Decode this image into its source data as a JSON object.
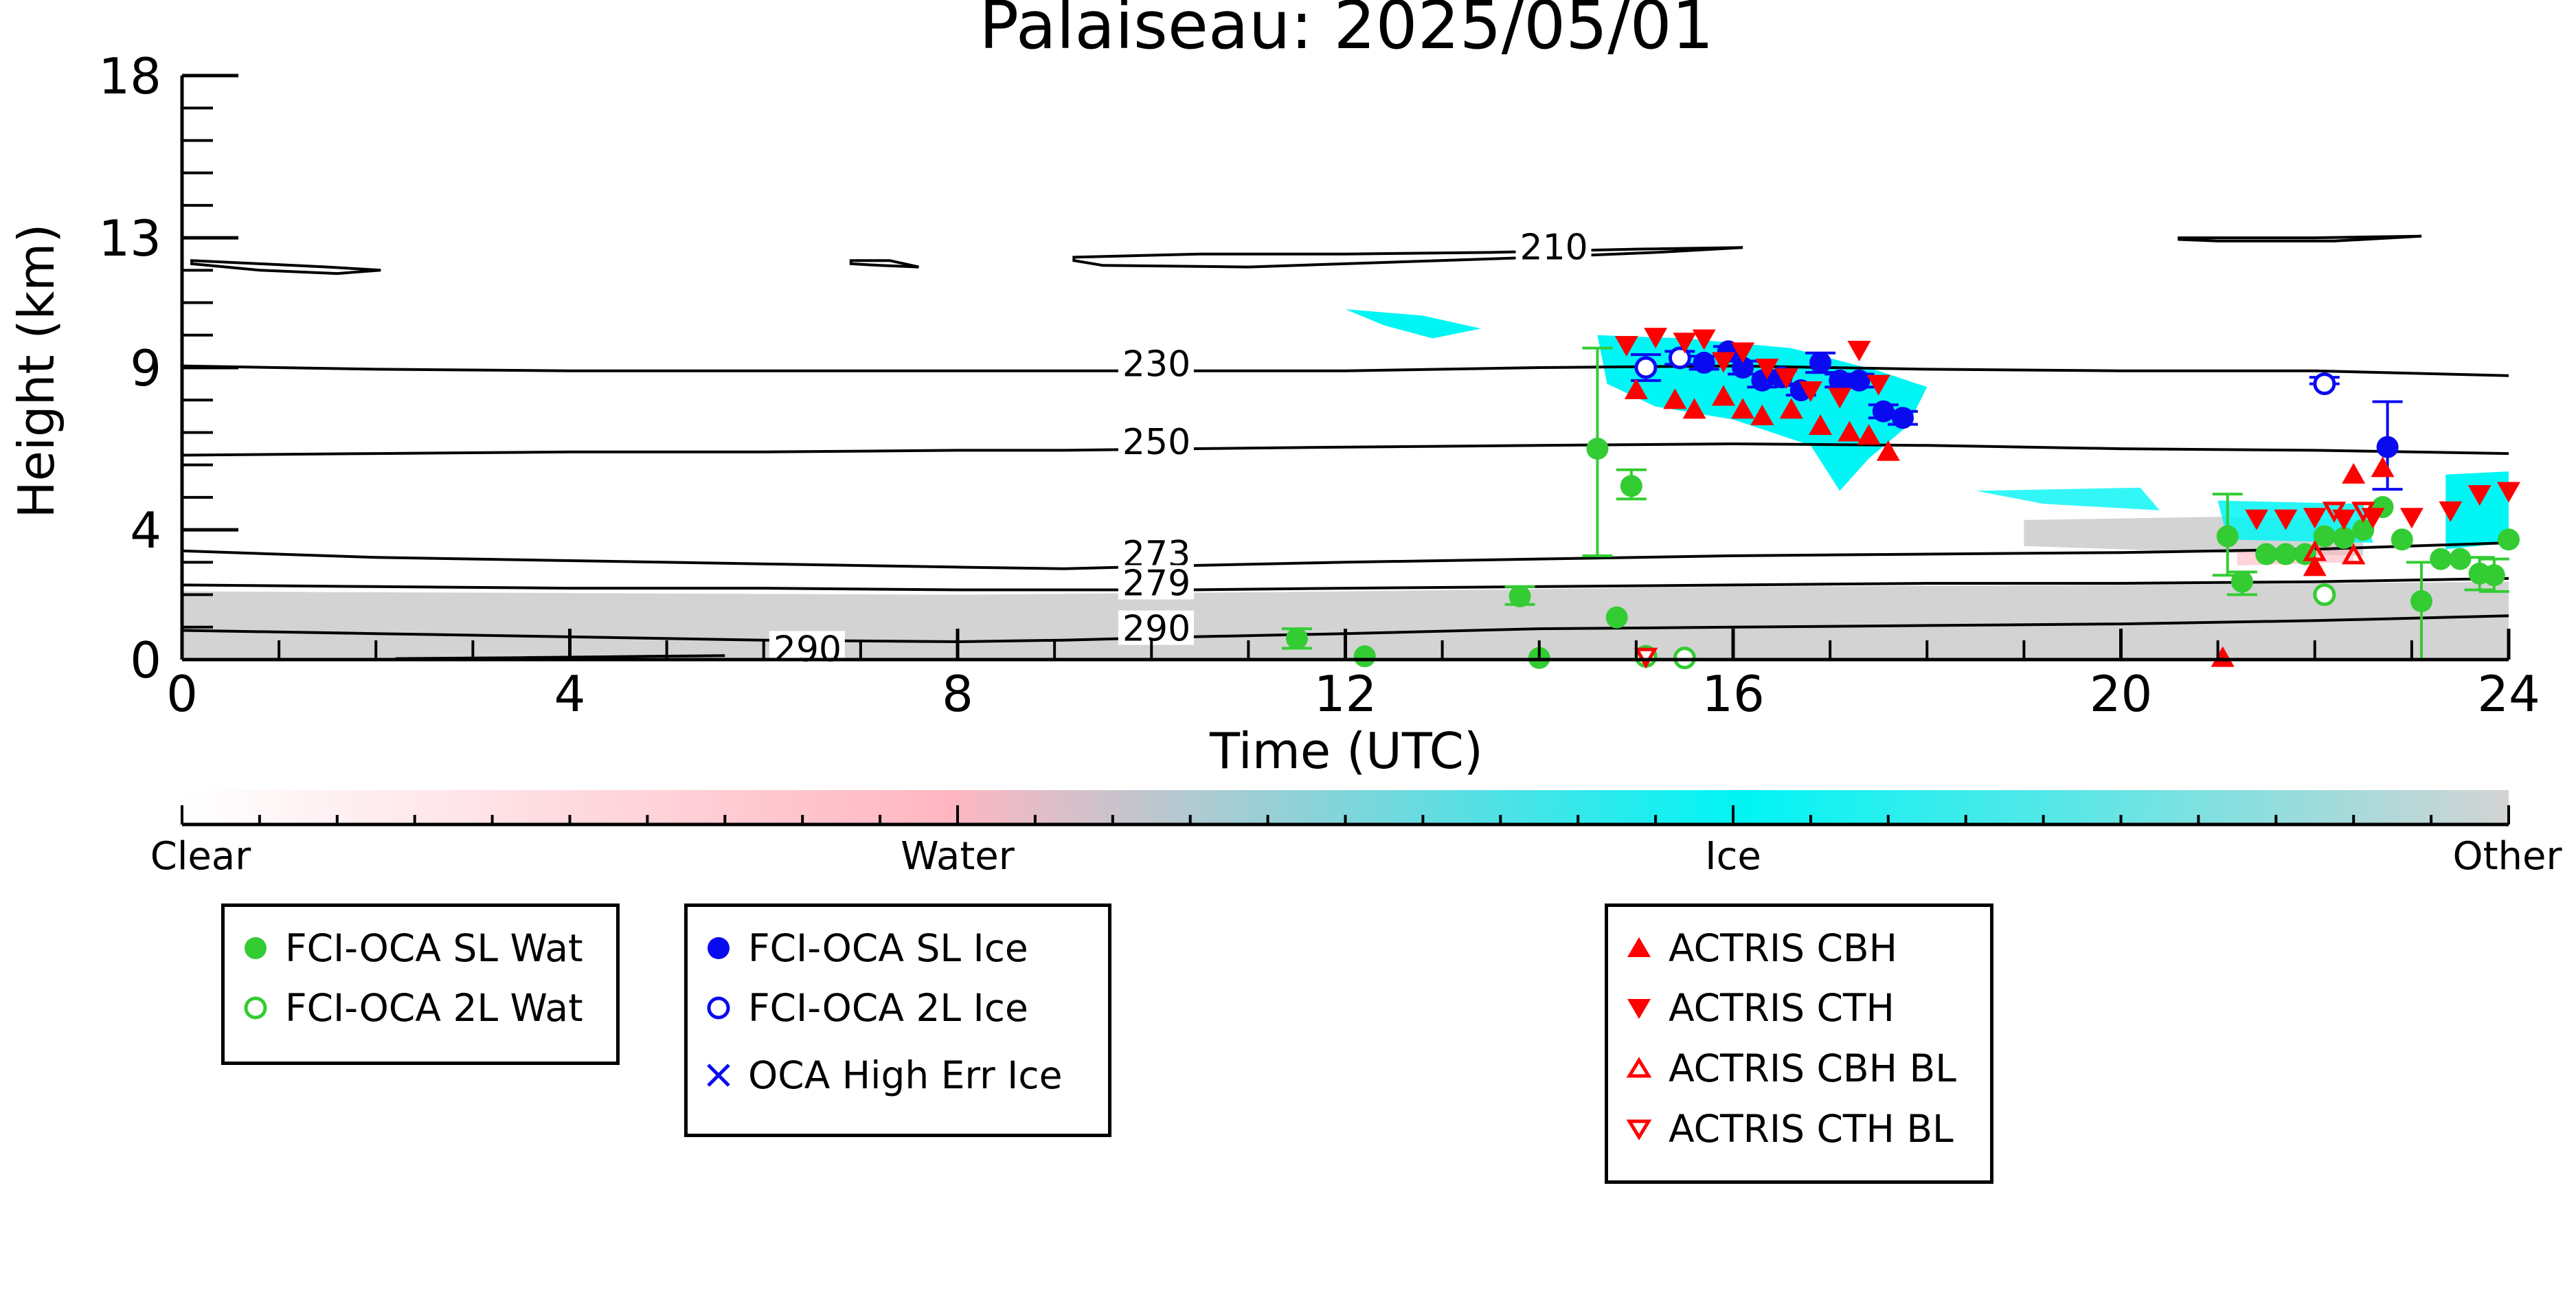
{
  "chart_data": {
    "type": "scatter",
    "title": "Palaiseau: 2025/05/01",
    "xlabel": "Time (UTC)",
    "ylabel": "Height (km)",
    "xlim": [
      0,
      24
    ],
    "ylim": [
      0,
      18
    ],
    "x_ticks": [
      0,
      4,
      8,
      12,
      16,
      20,
      24
    ],
    "x_tick_labels": [
      "0",
      "4",
      "8",
      "12",
      "16",
      "20",
      "24"
    ],
    "y_ticks": [
      0,
      4,
      9,
      13,
      18
    ],
    "y_tick_labels": [
      "0",
      "4",
      "9",
      "13",
      "18"
    ],
    "colorbar": {
      "labels": [
        "Clear",
        "Water",
        "Ice",
        "Other"
      ],
      "colors": [
        "#ffffff",
        "#ffb6c1",
        "#00f5f5",
        "#d3d3d3"
      ]
    },
    "temperature_contours": [
      {
        "label": "210",
        "label_x": 13.8,
        "label_y": 12.5,
        "shapes": [
          [
            [
              0.1,
              12.3
            ],
            [
              0.8,
              12.2
            ],
            [
              1.5,
              12.1
            ],
            [
              2.05,
              12.0
            ],
            [
              1.6,
              11.9
            ],
            [
              0.8,
              12.0
            ],
            [
              0.1,
              12.2
            ]
          ],
          [
            [
              6.9,
              12.3
            ],
            [
              7.3,
              12.3
            ],
            [
              7.6,
              12.1
            ],
            [
              7.2,
              12.15
            ],
            [
              6.9,
              12.2
            ]
          ],
          [
            [
              9.2,
              12.4
            ],
            [
              10.5,
              12.5
            ],
            [
              12,
              12.5
            ],
            [
              13.5,
              12.55
            ],
            [
              15,
              12.65
            ],
            [
              16.1,
              12.7
            ],
            [
              15.2,
              12.55
            ],
            [
              14,
              12.4
            ],
            [
              12.5,
              12.25
            ],
            [
              11,
              12.1
            ],
            [
              9.5,
              12.15
            ],
            [
              9.2,
              12.3
            ]
          ],
          [
            [
              20.6,
              13.0
            ],
            [
              22,
              13.0
            ],
            [
              23.1,
              13.05
            ],
            [
              22.2,
              12.9
            ],
            [
              21,
              12.9
            ],
            [
              20.6,
              12.95
            ]
          ]
        ]
      },
      {
        "label": "230",
        "label_x": 9.7,
        "label_y": 8.9,
        "line": [
          [
            0,
            9.05
          ],
          [
            2,
            8.95
          ],
          [
            4,
            8.9
          ],
          [
            6,
            8.9
          ],
          [
            8,
            8.9
          ],
          [
            9.1,
            8.9
          ],
          [
            10.4,
            8.9
          ],
          [
            12,
            8.9
          ],
          [
            14,
            9.0
          ],
          [
            16,
            9.05
          ],
          [
            18,
            8.95
          ],
          [
            20,
            8.9
          ],
          [
            22,
            8.9
          ],
          [
            24,
            8.75
          ]
        ]
      },
      {
        "label": "250",
        "label_x": 9.7,
        "label_y": 6.5,
        "line": [
          [
            0,
            6.3
          ],
          [
            2,
            6.35
          ],
          [
            4,
            6.4
          ],
          [
            6,
            6.4
          ],
          [
            8,
            6.45
          ],
          [
            9.1,
            6.45
          ],
          [
            10.4,
            6.5
          ],
          [
            12,
            6.55
          ],
          [
            14,
            6.6
          ],
          [
            16,
            6.65
          ],
          [
            18,
            6.6
          ],
          [
            20,
            6.5
          ],
          [
            22,
            6.45
          ],
          [
            24,
            6.35
          ]
        ]
      },
      {
        "label": "273",
        "label_x": 9.7,
        "label_y": 3.05,
        "line": [
          [
            0,
            3.35
          ],
          [
            2,
            3.15
          ],
          [
            4,
            3.05
          ],
          [
            6,
            2.95
          ],
          [
            8,
            2.85
          ],
          [
            9.1,
            2.8
          ],
          [
            10.4,
            2.9
          ],
          [
            12,
            3.0
          ],
          [
            14,
            3.1
          ],
          [
            16,
            3.2
          ],
          [
            18,
            3.25
          ],
          [
            20,
            3.3
          ],
          [
            22,
            3.4
          ],
          [
            24,
            3.6
          ]
        ]
      },
      {
        "label": "279",
        "label_x": 9.7,
        "label_y": 2.15,
        "line": [
          [
            0,
            2.3
          ],
          [
            2,
            2.25
          ],
          [
            4,
            2.2
          ],
          [
            6,
            2.2
          ],
          [
            8,
            2.15
          ],
          [
            9.1,
            2.15
          ],
          [
            10.4,
            2.15
          ],
          [
            12,
            2.2
          ],
          [
            14,
            2.25
          ],
          [
            16,
            2.3
          ],
          [
            18,
            2.35
          ],
          [
            20,
            2.35
          ],
          [
            22,
            2.4
          ],
          [
            24,
            2.5
          ]
        ]
      },
      {
        "label": "290",
        "label_x": 9.7,
        "label_y": 0.75,
        "line": [
          [
            0,
            0.9
          ],
          [
            2,
            0.8
          ],
          [
            4,
            0.7
          ],
          [
            6,
            0.6
          ],
          [
            8,
            0.55
          ],
          [
            9.1,
            0.6
          ],
          [
            10.4,
            0.7
          ],
          [
            12,
            0.8
          ],
          [
            14,
            0.95
          ],
          [
            16,
            1.0
          ],
          [
            18,
            1.05
          ],
          [
            20,
            1.1
          ],
          [
            22,
            1.2
          ],
          [
            24,
            1.35
          ]
        ]
      },
      {
        "label": "290",
        "label_x": 6.1,
        "label_y": 0.12,
        "line": [
          [
            2.2,
            0.03
          ],
          [
            3.5,
            0.06
          ],
          [
            4.8,
            0.1
          ],
          [
            5.6,
            0.12
          ]
        ]
      }
    ],
    "series": [
      {
        "name": "FCI-OCA SL Wat",
        "color": "#33cc33",
        "marker": "circle-filled",
        "x": [
          11.5,
          12.2,
          13.8,
          14.0,
          14.6,
          14.8,
          14.95,
          21.1,
          21.25,
          21.5,
          21.7,
          21.9,
          22.1,
          22.3,
          22.5,
          22.7,
          22.9,
          23.1,
          23.3,
          23.5,
          23.7,
          23.85,
          24.0
        ],
        "y": [
          0.65,
          0.1,
          1.95,
          0.05,
          6.5,
          1.3,
          5.35,
          3.8,
          2.4,
          3.25,
          3.25,
          3.25,
          3.8,
          3.75,
          4.0,
          4.7,
          3.7,
          1.8,
          3.1,
          3.1,
          2.65,
          2.6,
          3.7
        ],
        "yerr_low": [
          0.3,
          0,
          0.25,
          0,
          3.3,
          0,
          0.4,
          1.2,
          0.4,
          0,
          0,
          0,
          0,
          0,
          0,
          0,
          0,
          1.8,
          0,
          0,
          0.5,
          0.5,
          0
        ],
        "yerr_high": [
          0.3,
          0,
          0.3,
          0,
          3.1,
          0,
          0.5,
          1.3,
          0.3,
          0,
          0,
          0,
          0,
          0,
          0,
          0,
          0,
          1.2,
          0,
          0,
          0.5,
          0.5,
          0
        ]
      },
      {
        "name": "FCI-OCA 2L Wat",
        "color": "#33cc33",
        "marker": "circle-open",
        "x": [
          15.1,
          15.5,
          22.1
        ],
        "y": [
          0.1,
          0.05,
          2.0
        ],
        "yerr_low": [
          0,
          0,
          0
        ],
        "yerr_high": [
          0,
          0,
          0
        ]
      },
      {
        "name": "FCI-OCA SL Ice",
        "color": "#0a0af0",
        "marker": "circle-filled",
        "x": [
          15.7,
          15.95,
          16.1,
          16.3,
          16.5,
          16.7,
          16.9,
          17.1,
          17.3,
          17.55,
          17.75,
          22.75
        ],
        "y": [
          9.15,
          9.5,
          9.0,
          8.6,
          8.7,
          8.3,
          9.15,
          8.6,
          8.6,
          7.65,
          7.45,
          6.55
        ],
        "yerr_low": [
          0.2,
          0.15,
          0.2,
          0.2,
          0.2,
          0.15,
          0.3,
          0.2,
          0.2,
          0.2,
          0.2,
          1.3
        ],
        "yerr_high": [
          0.2,
          0.15,
          0.2,
          0.2,
          0.2,
          0.15,
          0.3,
          0.2,
          0.2,
          0.2,
          0.2,
          1.4
        ]
      },
      {
        "name": "FCI-OCA 2L Ice",
        "color": "#0a0af0",
        "marker": "circle-open",
        "x": [
          15.1,
          15.45,
          22.1
        ],
        "y": [
          9.0,
          9.3,
          8.5
        ],
        "yerr_low": [
          0.4,
          0.2,
          0
        ],
        "yerr_high": [
          0.4,
          0.2,
          0.2
        ]
      },
      {
        "name": "OCA High Err Ice",
        "color": "#0a0af0",
        "marker": "x",
        "x": [],
        "y": []
      },
      {
        "name": "ACTRIS CBH",
        "color": "#ff0000",
        "marker": "triangle-up-filled",
        "x": [
          15.0,
          15.4,
          15.6,
          15.9,
          16.1,
          16.3,
          16.6,
          16.9,
          17.2,
          17.4,
          17.6,
          21.05,
          22.0,
          22.4,
          22.7
        ],
        "y": [
          8.3,
          8.0,
          7.7,
          8.1,
          7.7,
          7.5,
          7.7,
          7.2,
          7.0,
          6.9,
          6.4,
          0.05,
          2.85,
          5.7,
          5.9
        ],
        "yerr_low": [],
        "yerr_high": []
      },
      {
        "name": "ACTRIS CTH",
        "color": "#ff0000",
        "marker": "triangle-down-filled",
        "x": [
          14.9,
          15.2,
          15.5,
          15.7,
          15.9,
          16.1,
          16.35,
          16.55,
          16.8,
          17.1,
          17.3,
          17.5,
          21.4,
          21.7,
          22.0,
          22.3,
          22.6,
          23.0,
          23.4,
          23.7,
          24.0
        ],
        "y": [
          9.7,
          9.95,
          9.8,
          9.9,
          9.2,
          9.5,
          9.0,
          8.7,
          8.3,
          8.1,
          9.55,
          8.5,
          4.35,
          4.35,
          4.4,
          4.35,
          4.4,
          4.4,
          4.6,
          5.1,
          5.2
        ],
        "yerr_low": [],
        "yerr_high": []
      },
      {
        "name": "ACTRIS CBH BL",
        "color": "#ff0000",
        "marker": "triangle-up-open",
        "x": [
          22.0,
          22.4
        ],
        "y": [
          3.3,
          3.2
        ],
        "yerr_low": [],
        "yerr_high": []
      },
      {
        "name": "ACTRIS CTH BL",
        "color": "#ff0000",
        "marker": "triangle-down-open",
        "x": [
          15.1,
          22.2,
          22.5
        ],
        "y": [
          0.1,
          4.6,
          4.6
        ],
        "yerr_low": [],
        "yerr_high": []
      }
    ],
    "legend_groups": [
      [
        "FCI-OCA SL Wat",
        "FCI-OCA 2L Wat"
      ],
      [
        "FCI-OCA SL Ice",
        "FCI-OCA 2L Ice",
        "OCA High Err Ice"
      ],
      [
        "ACTRIS CBH",
        "ACTRIS CTH",
        "ACTRIS CBH BL",
        "ACTRIS CTH BL"
      ]
    ],
    "grid": false
  }
}
